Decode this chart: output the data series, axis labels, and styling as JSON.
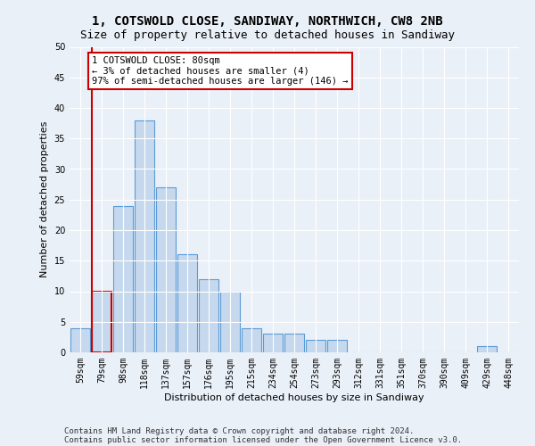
{
  "title1": "1, COTSWOLD CLOSE, SANDIWAY, NORTHWICH, CW8 2NB",
  "title2": "Size of property relative to detached houses in Sandiway",
  "xlabel": "Distribution of detached houses by size in Sandiway",
  "ylabel": "Number of detached properties",
  "categories": [
    "59sqm",
    "79sqm",
    "98sqm",
    "118sqm",
    "137sqm",
    "157sqm",
    "176sqm",
    "195sqm",
    "215sqm",
    "234sqm",
    "254sqm",
    "273sqm",
    "293sqm",
    "312sqm",
    "331sqm",
    "351sqm",
    "370sqm",
    "390sqm",
    "409sqm",
    "429sqm",
    "448sqm"
  ],
  "values": [
    4,
    10,
    24,
    38,
    27,
    16,
    12,
    10,
    4,
    3,
    3,
    2,
    2,
    0,
    0,
    0,
    0,
    0,
    0,
    1,
    0
  ],
  "bar_color": "#c5d8ed",
  "bar_edge_color": "#5b9bd5",
  "highlight_bar_edge_color": "#cc0000",
  "highlight_index": 1,
  "annotation_text": "1 COTSWOLD CLOSE: 80sqm\n← 3% of detached houses are smaller (4)\n97% of semi-detached houses are larger (146) →",
  "annotation_box_color": "#ffffff",
  "annotation_box_edge_color": "#cc0000",
  "ylim": [
    0,
    50
  ],
  "yticks": [
    0,
    5,
    10,
    15,
    20,
    25,
    30,
    35,
    40,
    45,
    50
  ],
  "footer1": "Contains HM Land Registry data © Crown copyright and database right 2024.",
  "footer2": "Contains public sector information licensed under the Open Government Licence v3.0.",
  "background_color": "#eaf0f7",
  "plot_bg_color": "#eaf0f7",
  "grid_color": "#ffffff",
  "title1_fontsize": 10,
  "title2_fontsize": 9,
  "axis_label_fontsize": 8,
  "tick_fontsize": 7,
  "annotation_fontsize": 7.5,
  "footer_fontsize": 6.5
}
